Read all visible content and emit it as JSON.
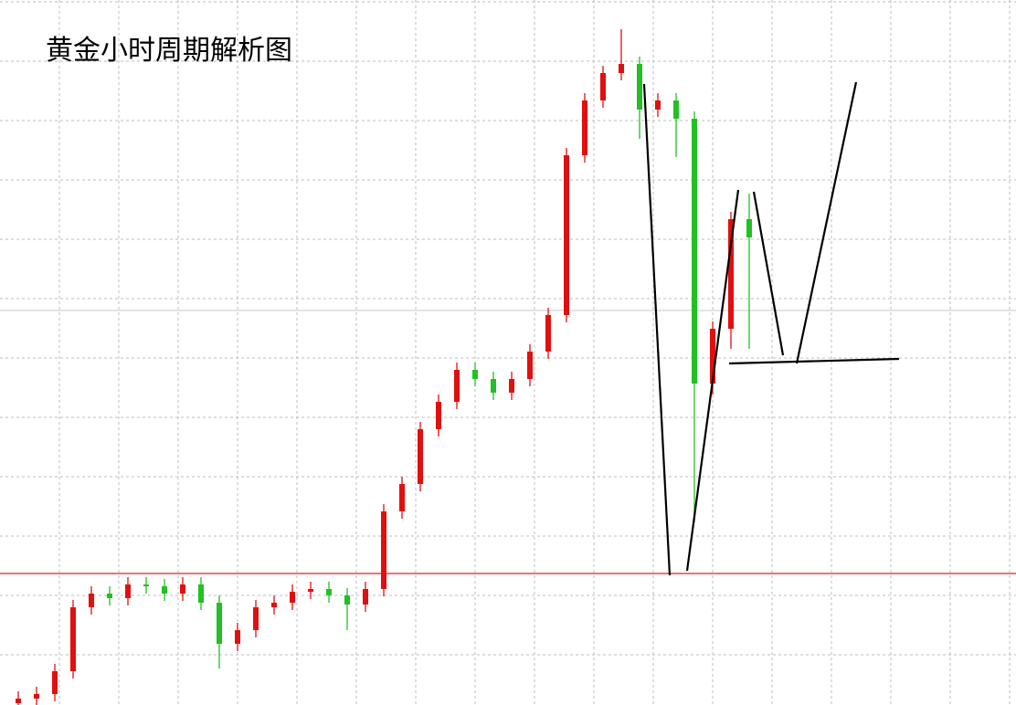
{
  "chart_data": {
    "type": "candlestick",
    "title": "黄金小时周期解析图",
    "series": [
      {
        "name": "open",
        "values": [
          2,
          7,
          12,
          37,
          107,
          122,
          117,
          132,
          130,
          122,
          132,
          112,
          67,
          82,
          107,
          112,
          124,
          127,
          120,
          110,
          127,
          212,
          242,
          302,
          332,
          367,
          357,
          342,
          357,
          387,
          427,
          602,
          662,
          692,
          702,
          652,
          662,
          642,
          352,
          412,
          532
        ]
      },
      {
        "name": "high",
        "values": [
          15,
          20,
          45,
          115,
          130,
          130,
          140,
          140,
          138,
          140,
          140,
          120,
          90,
          115,
          120,
          132,
          135,
          135,
          128,
          135,
          220,
          250,
          310,
          340,
          375,
          375,
          365,
          365,
          395,
          435,
          610,
          670,
          700,
          740,
          710,
          670,
          670,
          650,
          420,
          540,
          560
        ]
      },
      {
        "name": "low",
        "values": [
          0,
          0,
          4,
          29,
          99,
          109,
          109,
          122,
          114,
          114,
          104,
          40,
          59,
          74,
          99,
          104,
          116,
          112,
          82,
          102,
          119,
          204,
          234,
          294,
          324,
          349,
          334,
          334,
          349,
          379,
          419,
          594,
          654,
          684,
          620,
          644,
          600,
          200,
          340,
          390,
          390
        ]
      },
      {
        "name": "close",
        "values": [
          7,
          12,
          37,
          107,
          122,
          117,
          132,
          130,
          122,
          132,
          112,
          67,
          82,
          107,
          112,
          124,
          127,
          120,
          110,
          127,
          212,
          242,
          302,
          332,
          367,
          357,
          342,
          357,
          387,
          427,
          602,
          662,
          692,
          702,
          652,
          662,
          642,
          352,
          412,
          532,
          512
        ]
      }
    ],
    "up_color": "#e01010",
    "down_color": "#22c022",
    "ylim": [
      0,
      772
    ]
  }
}
